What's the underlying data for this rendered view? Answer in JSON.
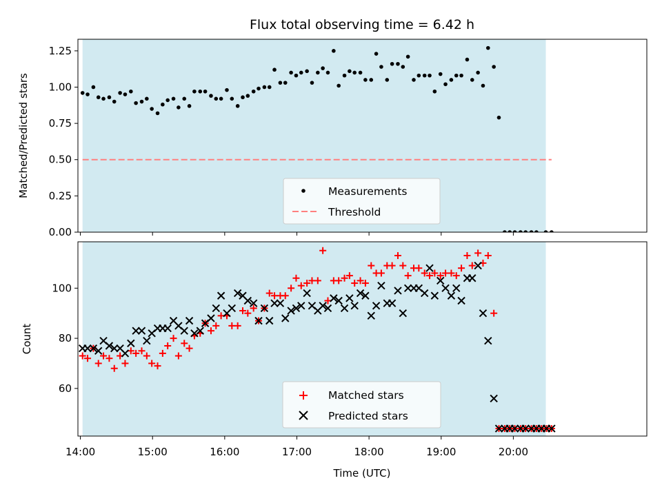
{
  "colors": {
    "background": "#ffffff",
    "span": "#add8e6",
    "measurement": "#000000",
    "threshold": "#ff7f7f",
    "matched": "#ff0000",
    "predicted": "#000000"
  },
  "chart_data": [
    {
      "type": "scatter",
      "title": "Flux total observing time = 6.42 h",
      "xlabel": "",
      "ylabel": "Matched/Predicted stars",
      "xlim": [
        13.966,
        21.85
      ],
      "ylim": [
        0.0,
        1.33
      ],
      "yticks": [
        0.0,
        0.25,
        0.5,
        0.75,
        1.0,
        1.25
      ],
      "ytick_labels": [
        "0.00",
        "0.25",
        "0.50",
        "0.75",
        "1.00",
        "1.25"
      ],
      "xticks": [
        14,
        15,
        16,
        17,
        18,
        19,
        20
      ],
      "observing_span": [
        14.03,
        20.45
      ],
      "threshold": {
        "label": "Threshold",
        "value": 0.5,
        "x_range": [
          14.03,
          20.53
        ]
      },
      "legend": [
        "Measurements",
        "Threshold"
      ],
      "series": [
        {
          "name": "Measurements",
          "x": [
            14.03,
            14.1,
            14.18,
            14.25,
            14.32,
            14.4,
            14.47,
            14.55,
            14.62,
            14.7,
            14.77,
            14.85,
            14.92,
            14.99,
            15.07,
            15.14,
            15.21,
            15.29,
            15.36,
            15.44,
            15.51,
            15.58,
            15.66,
            15.73,
            15.81,
            15.88,
            15.95,
            16.03,
            16.1,
            16.18,
            16.25,
            16.32,
            16.4,
            16.47,
            16.55,
            16.62,
            16.69,
            16.77,
            16.84,
            16.92,
            16.99,
            17.06,
            17.14,
            17.21,
            17.29,
            17.36,
            17.43,
            17.51,
            17.58,
            17.66,
            17.73,
            17.8,
            17.88,
            17.95,
            18.03,
            18.1,
            18.17,
            18.25,
            18.32,
            18.4,
            18.47,
            18.54,
            18.62,
            18.69,
            18.77,
            18.84,
            18.91,
            18.99,
            19.06,
            19.14,
            19.21,
            19.28,
            19.36,
            19.43,
            19.51,
            19.58,
            19.65,
            19.73,
            19.8,
            19.88,
            19.95,
            20.02,
            20.1,
            20.17,
            20.25,
            20.32,
            20.45,
            20.53
          ],
          "y": [
            0.96,
            0.95,
            1.0,
            0.93,
            0.92,
            0.93,
            0.9,
            0.96,
            0.95,
            0.97,
            0.89,
            0.9,
            0.92,
            0.85,
            0.82,
            0.88,
            0.91,
            0.92,
            0.86,
            0.92,
            0.87,
            0.97,
            0.97,
            0.97,
            0.94,
            0.92,
            0.92,
            0.98,
            0.92,
            0.87,
            0.93,
            0.94,
            0.97,
            0.99,
            1.0,
            1.0,
            1.12,
            1.03,
            1.03,
            1.1,
            1.08,
            1.1,
            1.11,
            1.03,
            1.1,
            1.13,
            1.1,
            1.25,
            1.01,
            1.08,
            1.11,
            1.1,
            1.1,
            1.05,
            1.05,
            1.23,
            1.14,
            1.05,
            1.16,
            1.16,
            1.14,
            1.21,
            1.05,
            1.08,
            1.08,
            1.08,
            0.97,
            1.09,
            1.02,
            1.05,
            1.08,
            1.08,
            1.19,
            1.05,
            1.1,
            1.01,
            1.27,
            1.14,
            0.79,
            0.0,
            0.0,
            0.0,
            0.0,
            0.0,
            0.0,
            0.0,
            0.0,
            0.0
          ]
        }
      ]
    },
    {
      "type": "scatter",
      "title": "",
      "xlabel": "Time (UTC)",
      "ylabel": "Count",
      "xlim": [
        13.966,
        21.85
      ],
      "ylim": [
        41,
        118.5
      ],
      "yticks": [
        60,
        80,
        100
      ],
      "ytick_labels": [
        "60",
        "80",
        "100"
      ],
      "xticks": [
        14,
        15,
        16,
        17,
        18,
        19,
        20
      ],
      "xtick_labels": [
        "14:00",
        "15:00",
        "16:00",
        "17:00",
        "18:00",
        "19:00",
        "20:00"
      ],
      "observing_span": [
        14.03,
        20.45
      ],
      "legend": [
        "Matched stars",
        "Predicted stars"
      ],
      "series": [
        {
          "name": "Matched stars",
          "x": [
            14.03,
            14.1,
            14.18,
            14.25,
            14.32,
            14.4,
            14.47,
            14.55,
            14.62,
            14.7,
            14.77,
            14.85,
            14.92,
            14.99,
            15.07,
            15.14,
            15.21,
            15.29,
            15.36,
            15.44,
            15.51,
            15.58,
            15.66,
            15.73,
            15.81,
            15.88,
            15.95,
            16.03,
            16.1,
            16.18,
            16.25,
            16.32,
            16.4,
            16.47,
            16.55,
            16.62,
            16.69,
            16.77,
            16.84,
            16.92,
            16.99,
            17.06,
            17.14,
            17.21,
            17.29,
            17.36,
            17.43,
            17.51,
            17.58,
            17.66,
            17.73,
            17.8,
            17.88,
            17.95,
            18.03,
            18.1,
            18.17,
            18.25,
            18.32,
            18.4,
            18.47,
            18.54,
            18.62,
            18.69,
            18.77,
            18.84,
            18.91,
            18.99,
            19.06,
            19.14,
            19.21,
            19.28,
            19.36,
            19.43,
            19.51,
            19.58,
            19.65,
            19.73,
            19.8,
            19.88,
            19.95,
            20.02,
            20.1,
            20.17,
            20.25,
            20.32,
            20.39,
            20.46,
            20.53
          ],
          "y": [
            73,
            72,
            76,
            70,
            73,
            72,
            68,
            73,
            70,
            75,
            74,
            75,
            73,
            70,
            69,
            74,
            77,
            80,
            73,
            78,
            76,
            81,
            82,
            86,
            83,
            85,
            89,
            89,
            85,
            85,
            91,
            90,
            92,
            87,
            92,
            98,
            97,
            97,
            97,
            100,
            104,
            101,
            102,
            103,
            103,
            115,
            95,
            103,
            103,
            104,
            105,
            102,
            103,
            102,
            109,
            106,
            106,
            109,
            109,
            113,
            109,
            105,
            108,
            108,
            106,
            105,
            106,
            105,
            106,
            106,
            105,
            108,
            113,
            109,
            114,
            110,
            113,
            90,
            44,
            44,
            44,
            44,
            44,
            44,
            44,
            44,
            44,
            44,
            44
          ]
        },
        {
          "name": "Predicted stars",
          "x": [
            14.03,
            14.1,
            14.18,
            14.25,
            14.32,
            14.4,
            14.47,
            14.55,
            14.62,
            14.7,
            14.77,
            14.85,
            14.92,
            14.99,
            15.07,
            15.14,
            15.21,
            15.29,
            15.36,
            15.44,
            15.51,
            15.58,
            15.66,
            15.73,
            15.81,
            15.88,
            15.95,
            16.03,
            16.1,
            16.18,
            16.25,
            16.32,
            16.4,
            16.47,
            16.55,
            16.62,
            16.69,
            16.77,
            16.84,
            16.92,
            16.99,
            17.06,
            17.14,
            17.21,
            17.29,
            17.36,
            17.43,
            17.51,
            17.58,
            17.66,
            17.73,
            17.8,
            17.88,
            17.95,
            18.03,
            18.1,
            18.17,
            18.25,
            18.32,
            18.4,
            18.47,
            18.54,
            18.62,
            18.69,
            18.77,
            18.84,
            18.91,
            18.99,
            19.06,
            19.14,
            19.21,
            19.28,
            19.36,
            19.43,
            19.51,
            19.58,
            19.65,
            19.73,
            19.8,
            19.88,
            19.95,
            20.02,
            20.1,
            20.17,
            20.25,
            20.32,
            20.39,
            20.46,
            20.53
          ],
          "y": [
            76,
            76,
            76,
            75,
            79,
            77,
            76,
            76,
            74,
            78,
            83,
            83,
            79,
            82,
            84,
            84,
            84,
            87,
            85,
            83,
            87,
            82,
            83,
            86,
            88,
            92,
            97,
            90,
            92,
            98,
            97,
            95,
            94,
            87,
            92,
            87,
            94,
            94,
            88,
            91,
            92,
            93,
            98,
            93,
            91,
            93,
            92,
            96,
            95,
            92,
            96,
            93,
            98,
            97,
            89,
            93,
            101,
            94,
            94,
            99,
            90,
            100,
            100,
            100,
            98,
            108,
            97,
            103,
            100,
            97,
            100,
            95,
            104,
            104,
            109,
            90,
            79,
            56,
            44,
            44,
            44,
            44,
            44,
            44,
            44,
            44,
            44,
            44,
            44
          ]
        }
      ]
    }
  ]
}
